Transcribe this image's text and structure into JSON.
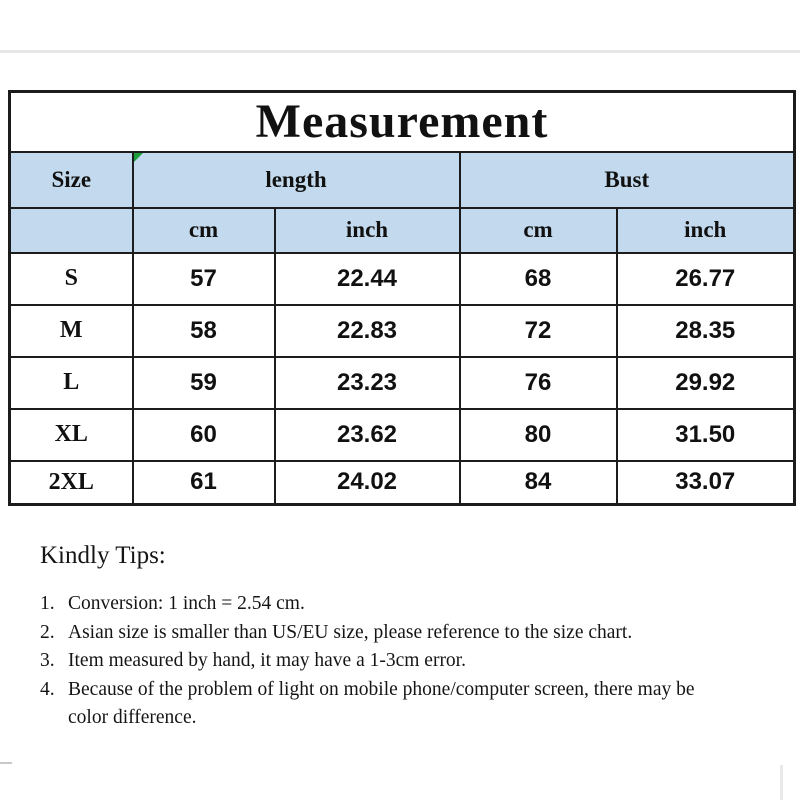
{
  "title": "Measurement",
  "table": {
    "group_headers": {
      "size": "Size",
      "length": "length",
      "bust": "Bust"
    },
    "unit_headers": {
      "length_cm": "cm",
      "length_inch": "inch",
      "bust_cm": "cm",
      "bust_inch": "inch"
    },
    "rows": [
      {
        "size": "S",
        "length_cm": "57",
        "length_inch": "22.44",
        "bust_cm": "68",
        "bust_inch": "26.77"
      },
      {
        "size": "M",
        "length_cm": "58",
        "length_inch": "22.83",
        "bust_cm": "72",
        "bust_inch": "28.35"
      },
      {
        "size": "L",
        "length_cm": "59",
        "length_inch": "23.23",
        "bust_cm": "76",
        "bust_inch": "29.92"
      },
      {
        "size": "XL",
        "length_cm": "60",
        "length_inch": "23.62",
        "bust_cm": "80",
        "bust_inch": "31.50"
      },
      {
        "size": "2XL",
        "length_cm": "61",
        "length_inch": "24.02",
        "bust_cm": "84",
        "bust_inch": "33.07"
      }
    ]
  },
  "tips": {
    "heading": "Kindly Tips:",
    "items": [
      {
        "num": "1.",
        "text": "Conversion: 1 inch = 2.54 cm."
      },
      {
        "num": "2.",
        "text": "Asian size is smaller than US/EU size, please reference to the size chart."
      },
      {
        "num": "3.",
        "text": "Item measured by hand, it may have a 1-3cm error."
      },
      {
        "num": "4.",
        "text": "Because of the problem of light on mobile phone/computer screen, there may be color difference."
      }
    ]
  },
  "colors": {
    "header_fill": "#c3daee",
    "border": "#1c1c1c",
    "marker_green": "#1e9e3a"
  }
}
